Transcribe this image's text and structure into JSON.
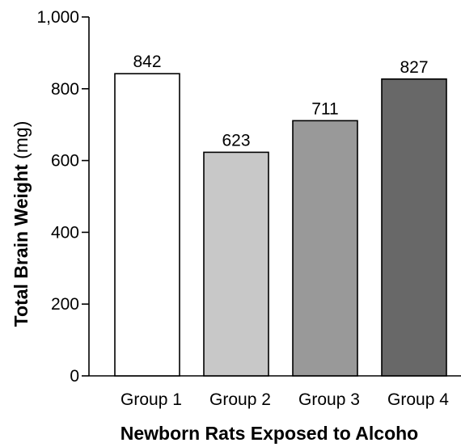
{
  "chart_data": {
    "type": "bar",
    "categories": [
      "Group 1",
      "Group 2",
      "Group 3",
      "Group 4"
    ],
    "values": [
      842,
      623,
      711,
      827
    ],
    "value_labels": [
      "842",
      "623",
      "711",
      "827"
    ],
    "bar_colors": [
      "#ffffff",
      "#c8c8c8",
      "#999999",
      "#686868"
    ],
    "bar_stroke": "#000000",
    "ylim": [
      0,
      1000
    ],
    "yticks": [
      0,
      200,
      400,
      600,
      800,
      1000
    ],
    "ytick_labels": [
      "0",
      "200",
      "400",
      "600",
      "800",
      "1,000"
    ],
    "ylabel": "Total Brain Weight",
    "ylabel_unit": "(mg)",
    "xlabel": "Newborn Rats Exposed to Alcoho",
    "grid": false,
    "legend": null
  }
}
